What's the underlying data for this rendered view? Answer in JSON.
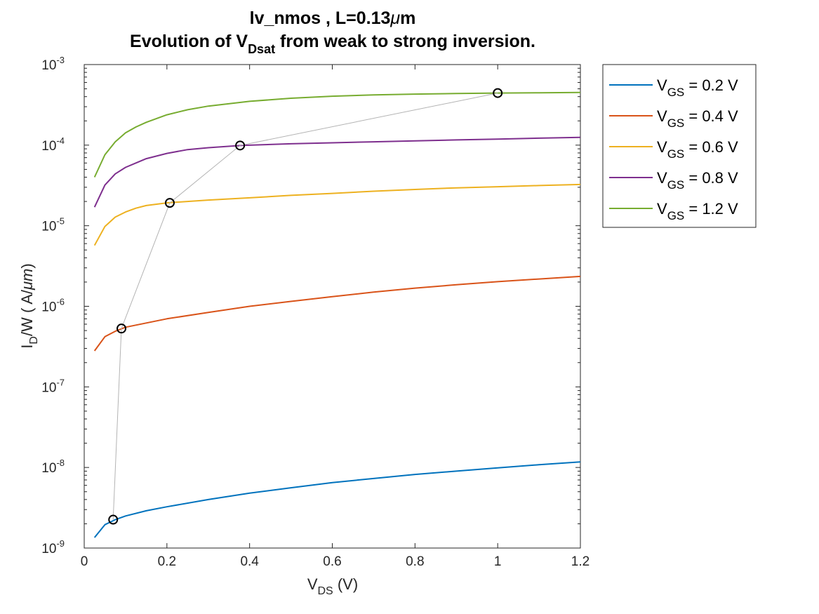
{
  "chart_data": {
    "type": "line",
    "title_line1_prefix": "lv_nmos , L=0.13",
    "title_line1_mu": "μ",
    "title_line1_suffix": "m",
    "title_line2_prefix": "Evolution of V",
    "title_line2_sub": "Dsat",
    "title_line2_suffix": " from weak to strong inversion.",
    "xlabel_main": "V",
    "xlabel_sub": "DS",
    "xlabel_unit": " (V)",
    "ylabel_I": "I",
    "ylabel_sub": "D",
    "ylabel_rest": "/W  ( A/",
    "ylabel_mu": "μ",
    "ylabel_m": "m",
    "ylabel_close": ")",
    "xlim": [
      0,
      1.2
    ],
    "ylim": [
      1e-09,
      0.001
    ],
    "yscale": "log",
    "grid": false,
    "legend_position": "outside-right",
    "x_ticks": [
      {
        "value": 0,
        "label": "0"
      },
      {
        "value": 0.2,
        "label": "0.2"
      },
      {
        "value": 0.4,
        "label": "0.4"
      },
      {
        "value": 0.6,
        "label": "0.6"
      },
      {
        "value": 0.8,
        "label": "0.8"
      },
      {
        "value": 1,
        "label": "1"
      },
      {
        "value": 1.2,
        "label": "1.2"
      }
    ],
    "y_ticks": [
      {
        "exp": -9,
        "base": "10",
        "power": "-9"
      },
      {
        "exp": -8,
        "base": "10",
        "power": "-8"
      },
      {
        "exp": -7,
        "base": "10",
        "power": "-7"
      },
      {
        "exp": -6,
        "base": "10",
        "power": "-6"
      },
      {
        "exp": -5,
        "base": "10",
        "power": "-5"
      },
      {
        "exp": -4,
        "base": "10",
        "power": "-4"
      },
      {
        "exp": -3,
        "base": "10",
        "power": "-3"
      }
    ],
    "series": [
      {
        "legend_V": "V",
        "legend_sub": "GS",
        "legend_rest": " = 0.2 V",
        "color": "#0072BD",
        "x": [
          0.025,
          0.05,
          0.075,
          0.1,
          0.15,
          0.2,
          0.3,
          0.4,
          0.5,
          0.6,
          0.7,
          0.8,
          0.9,
          1.0,
          1.1,
          1.2
        ],
        "y": [
          1.35e-09,
          1.95e-09,
          2.25e-09,
          2.5e-09,
          2.9e-09,
          3.25e-09,
          4e-09,
          4.8e-09,
          5.6e-09,
          6.5e-09,
          7.3e-09,
          8.2e-09,
          9e-09,
          9.9e-09,
          1.08e-08,
          1.17e-08
        ]
      },
      {
        "legend_V": "V",
        "legend_sub": "GS",
        "legend_rest": " = 0.4 V",
        "color": "#D95319",
        "x": [
          0.025,
          0.05,
          0.075,
          0.1,
          0.15,
          0.2,
          0.3,
          0.4,
          0.5,
          0.6,
          0.7,
          0.8,
          0.9,
          1.0,
          1.1,
          1.2
        ],
        "y": [
          2.8e-07,
          4.2e-07,
          4.9e-07,
          5.5e-07,
          6.2e-07,
          7e-07,
          8.4e-07,
          1e-06,
          1.15e-06,
          1.32e-06,
          1.5e-06,
          1.68e-06,
          1.85e-06,
          2.02e-06,
          2.18e-06,
          2.35e-06
        ]
      },
      {
        "legend_V": "V",
        "legend_sub": "GS",
        "legend_rest": " = 0.6 V",
        "color": "#EDB120",
        "x": [
          0.025,
          0.05,
          0.075,
          0.1,
          0.125,
          0.15,
          0.2,
          0.3,
          0.4,
          0.5,
          0.6,
          0.7,
          0.8,
          0.9,
          1.0,
          1.1,
          1.2
        ],
        "y": [
          5.7e-06,
          9.8e-06,
          1.28e-05,
          1.48e-05,
          1.65e-05,
          1.78e-05,
          1.92e-05,
          2.08e-05,
          2.22e-05,
          2.38e-05,
          2.52e-05,
          2.68e-05,
          2.82e-05,
          2.95e-05,
          3.05e-05,
          3.15e-05,
          3.25e-05
        ]
      },
      {
        "legend_V": "V",
        "legend_sub": "GS",
        "legend_rest": " = 0.8 V",
        "color": "#7E2F8E",
        "x": [
          0.025,
          0.05,
          0.075,
          0.1,
          0.125,
          0.15,
          0.2,
          0.25,
          0.3,
          0.38,
          0.5,
          0.6,
          0.7,
          0.8,
          0.9,
          1.0,
          1.1,
          1.2
        ],
        "y": [
          1.7e-05,
          3.2e-05,
          4.4e-05,
          5.3e-05,
          6e-05,
          6.8e-05,
          7.9e-05,
          8.8e-05,
          9.3e-05,
          9.9e-05,
          0.000104,
          0.000107,
          0.00011,
          0.000113,
          0.000116,
          0.000119,
          0.000122,
          0.000125
        ]
      },
      {
        "legend_V": "V",
        "legend_sub": "GS",
        "legend_rest": " = 1.2 V",
        "color": "#77AC30",
        "x": [
          0.025,
          0.05,
          0.075,
          0.1,
          0.125,
          0.15,
          0.2,
          0.25,
          0.3,
          0.4,
          0.5,
          0.6,
          0.7,
          0.8,
          0.9,
          1.0,
          1.1,
          1.2
        ],
        "y": [
          4e-05,
          7.6e-05,
          0.00011,
          0.000142,
          0.000168,
          0.000192,
          0.000238,
          0.000275,
          0.000305,
          0.00035,
          0.000382,
          0.000405,
          0.00042,
          0.00043,
          0.000437,
          0.000443,
          0.000447,
          0.00045
        ]
      }
    ],
    "vdsat_points": {
      "color": "#000000",
      "line_color": "#B3B3B3",
      "x": [
        0.07,
        0.09,
        0.207,
        0.377,
        1.0
      ],
      "y": [
        2.25e-09,
        5.3e-07,
        1.92e-05,
        9.9e-05,
        0.000443
      ]
    }
  }
}
